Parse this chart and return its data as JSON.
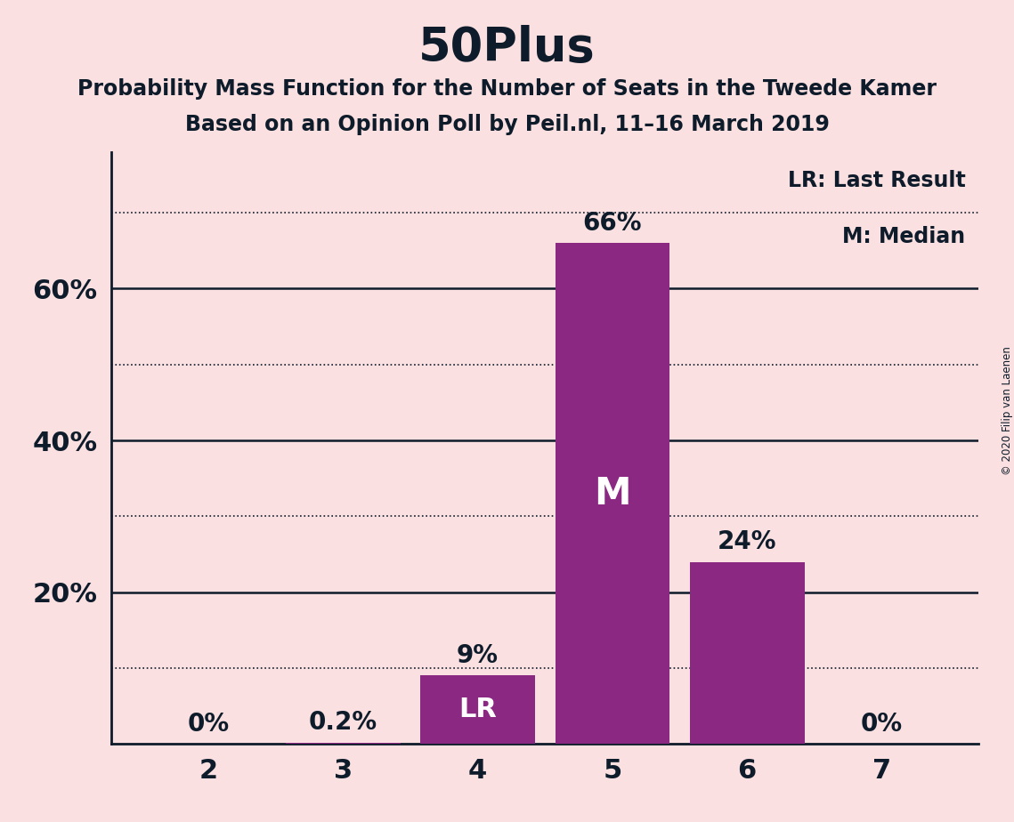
{
  "title": "50Plus",
  "subtitle1": "Probability Mass Function for the Number of Seats in the Tweede Kamer",
  "subtitle2": "Based on an Opinion Poll by Peil.nl, 11–16 March 2019",
  "copyright": "© 2020 Filip van Laenen",
  "categories": [
    2,
    3,
    4,
    5,
    6,
    7
  ],
  "values": [
    0.0,
    0.2,
    9.0,
    66.0,
    24.0,
    0.0
  ],
  "bar_color": "#8B2882",
  "background_color": "#FAE0E0",
  "text_color": "#0d1b2a",
  "bar_label_color_inside": "#FFFFFF",
  "bar_label_color_outside": "#0d1b2a",
  "ytick_positions": [
    0,
    20,
    40,
    60
  ],
  "ytick_labels": [
    "",
    "20%",
    "40%",
    "60%"
  ],
  "ylim": [
    0,
    78
  ],
  "legend_lr": "LR: Last Result",
  "legend_m": "M: Median",
  "lr_bar_index": 2,
  "median_bar_index": 3,
  "dotted_gridlines": [
    10,
    30,
    50,
    70
  ],
  "solid_gridlines": [
    20,
    40,
    60
  ],
  "value_labels": [
    "0%",
    "0.2%",
    "9%",
    "66%",
    "24%",
    "0%"
  ]
}
